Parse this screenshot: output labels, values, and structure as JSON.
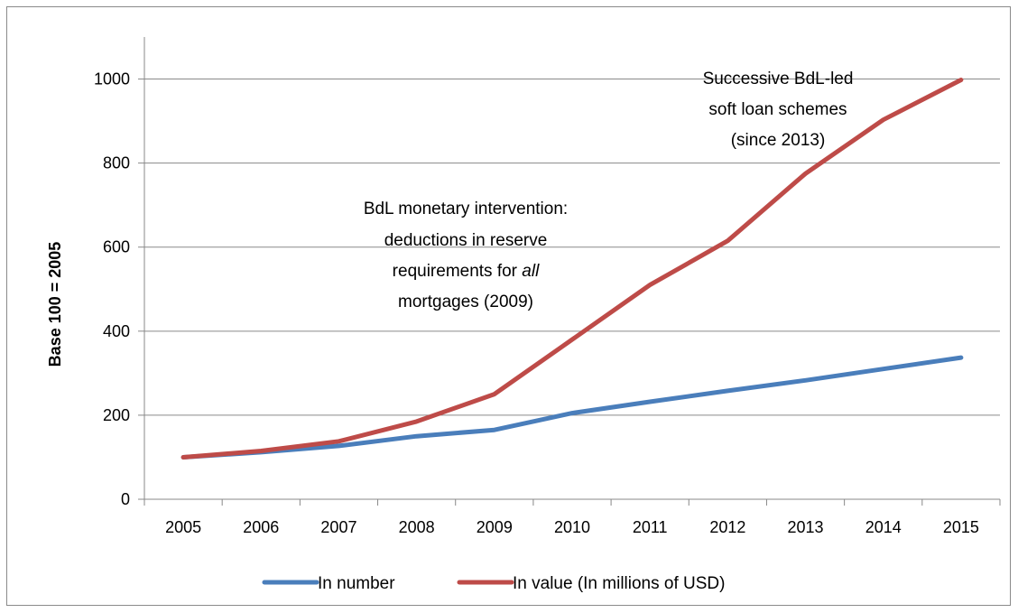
{
  "chart_data": {
    "type": "line",
    "title": "",
    "xlabel": "",
    "ylabel": "Base 100 = 2005",
    "ylim": [
      0,
      1100
    ],
    "yticks": [
      0,
      200,
      400,
      600,
      800,
      1000
    ],
    "categories": [
      "2005",
      "2006",
      "2007",
      "2008",
      "2009",
      "2010",
      "2011",
      "2012",
      "2013",
      "2014",
      "2015"
    ],
    "grid": true,
    "legend_position": "bottom",
    "series": [
      {
        "name": "In number",
        "color": "#4a7ebb",
        "values": [
          100,
          112,
          127,
          150,
          165,
          205,
          232,
          258,
          283,
          310,
          337
        ]
      },
      {
        "name": "In value (In millions of USD)",
        "color": "#be4b48",
        "values": [
          100,
          115,
          138,
          185,
          250,
          380,
          510,
          615,
          775,
          903,
          998
        ]
      }
    ],
    "annotations": [
      {
        "lines": [
          "BdL monetary intervention:",
          "deductions in reserve",
          "requirements for ",
          "mortgages (2009)"
        ],
        "emphasis": "all"
      },
      {
        "lines": [
          "Successive BdL-led",
          "soft loan schemes",
          "(since 2013)"
        ]
      }
    ]
  }
}
